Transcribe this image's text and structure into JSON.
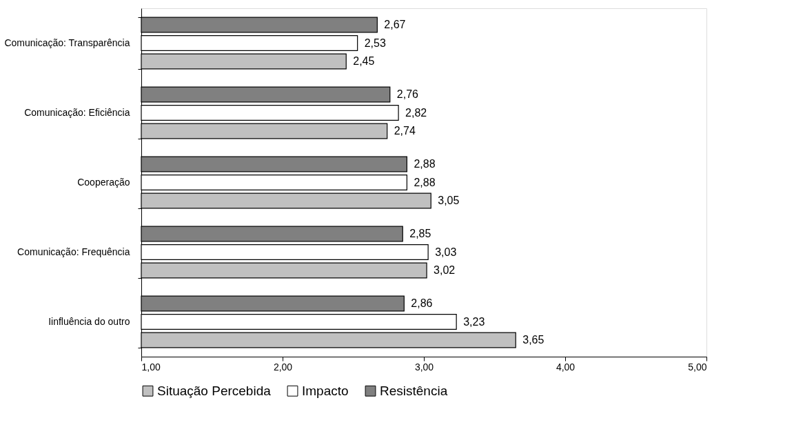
{
  "chart_data": {
    "type": "bar",
    "orientation": "horizontal",
    "categories": [
      "Comunicação: Transparência",
      "Comunicação: Eficiência",
      "Cooperação",
      "Comunicação: Frequência",
      "Iinfluência do outro"
    ],
    "series": [
      {
        "name": "Situação Percebida",
        "color": "#c0c0c0",
        "values": [
          2.45,
          2.74,
          3.05,
          3.02,
          3.65
        ],
        "value_labels": [
          "2,45",
          "2,74",
          "3,05",
          "3,02",
          "3,65"
        ]
      },
      {
        "name": "Impacto",
        "color": "#ffffff",
        "values": [
          2.53,
          2.82,
          2.88,
          3.03,
          3.23
        ],
        "value_labels": [
          "2,53",
          "2,82",
          "2,88",
          "3,03",
          "3,23"
        ]
      },
      {
        "name": "Resistência",
        "color": "#808080",
        "values": [
          2.67,
          2.76,
          2.88,
          2.85,
          2.86
        ],
        "value_labels": [
          "2,67",
          "2,76",
          "2,88",
          "2,85",
          "2,86"
        ]
      }
    ],
    "xlim": [
      1,
      5
    ],
    "xticks": [
      {
        "value": 1,
        "label": "1,00"
      },
      {
        "value": 2,
        "label": "2,00"
      },
      {
        "value": 3,
        "label": "3,00"
      },
      {
        "value": 4,
        "label": "4,00"
      },
      {
        "value": 5,
        "label": "5,00"
      }
    ],
    "legend": "bottom",
    "grid": false
  }
}
